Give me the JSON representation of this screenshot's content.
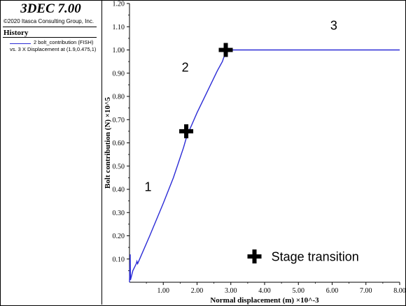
{
  "app": {
    "title": "3DEC 7.00",
    "copyright": "©2020 Itasca Consulting Group, Inc."
  },
  "history": {
    "heading": "History",
    "legend_line1": "2 bolt_contribution (FISH)",
    "legend_line2": "vs. 3 X Displacement at (1.9,0.475,1)",
    "series_color": "#2b2bd6"
  },
  "chart_data": {
    "type": "line",
    "xlabel": "Normal displacement (m) ×10^-3",
    "ylabel": "Bolt contribution (N) ×10^5",
    "xlim": [
      0,
      8.0
    ],
    "ylim": [
      0,
      1.2
    ],
    "x_ticks": [
      "1.00",
      "2.00",
      "3.00",
      "4.00",
      "5.00",
      "6.00",
      "7.00",
      "8.00"
    ],
    "y_ticks": [
      "0.10",
      "0.20",
      "0.30",
      "0.40",
      "0.50",
      "0.60",
      "0.70",
      "0.80",
      "0.90",
      "1.00",
      "1.10",
      "1.20"
    ],
    "series": [
      {
        "color": "#2b2bd6",
        "points": [
          [
            0,
            0
          ],
          [
            0.02,
            0.12
          ],
          [
            0.03,
            0.01
          ],
          [
            0.1,
            0.05
          ],
          [
            0.2,
            0.08
          ],
          [
            0.22,
            0.09
          ],
          [
            0.24,
            0.08
          ],
          [
            0.3,
            0.1
          ],
          [
            0.6,
            0.2
          ],
          [
            1.0,
            0.34
          ],
          [
            1.3,
            0.45
          ],
          [
            1.6,
            0.58
          ],
          [
            1.7,
            0.63
          ],
          [
            1.85,
            0.68
          ],
          [
            2.0,
            0.73
          ],
          [
            2.3,
            0.82
          ],
          [
            2.6,
            0.91
          ],
          [
            2.75,
            0.95
          ],
          [
            2.82,
            0.98
          ],
          [
            2.88,
            1.0
          ],
          [
            3.0,
            1.0
          ],
          [
            4.0,
            1.0
          ],
          [
            5.0,
            1.0
          ],
          [
            6.0,
            1.0
          ],
          [
            7.0,
            1.0
          ],
          [
            8.0,
            1.0
          ]
        ]
      }
    ],
    "markers": [
      [
        1.68,
        0.65
      ],
      [
        2.85,
        1.0
      ],
      [
        3.7,
        0.111
      ]
    ],
    "annotations": [
      {
        "text": "1",
        "x": 0.55,
        "y": 0.41
      },
      {
        "text": "2",
        "x": 1.65,
        "y": 0.925
      },
      {
        "text": "3",
        "x": 6.05,
        "y": 1.105
      },
      {
        "text": "Stage transition",
        "x": 4.2,
        "y": 0.11
      }
    ]
  }
}
